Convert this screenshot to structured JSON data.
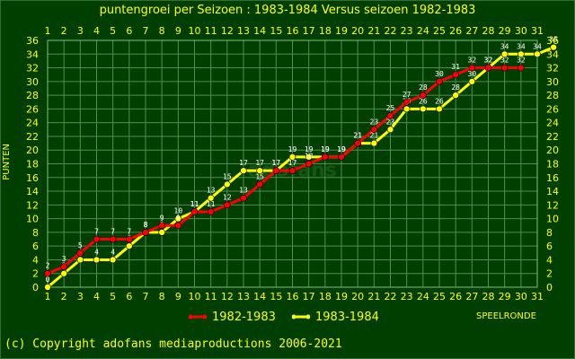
{
  "page": {
    "title": "puntengroei per Seizoen : 1983-1984 Versus seizoen 1982-1983",
    "ylabel": "PUNTEN",
    "xlabel": "SPEELRONDE",
    "copyright": "(c) Copyright adofans mediaproductions 2006-2021",
    "watermark": "adofans",
    "colors": {
      "background": "#003f00",
      "grid": "#4f8f4f",
      "text": "#ffff00",
      "series_1982": "#ff0000",
      "series_1983": "#ffff00"
    }
  },
  "chart_data": {
    "type": "line",
    "title": "puntengroei per Seizoen : 1983-1984 Versus seizoen 1982-1983",
    "xlabel": "SPEELRONDE",
    "ylabel": "PUNTEN",
    "xlim": [
      1,
      31
    ],
    "ylim": [
      0,
      36
    ],
    "x_ticks": [
      1,
      2,
      3,
      4,
      5,
      6,
      7,
      8,
      9,
      10,
      11,
      12,
      13,
      14,
      15,
      16,
      17,
      18,
      19,
      20,
      21,
      22,
      23,
      24,
      25,
      26,
      27,
      28,
      29,
      30,
      31
    ],
    "y_ticks": [
      0,
      2,
      4,
      6,
      8,
      10,
      12,
      14,
      16,
      18,
      20,
      22,
      24,
      26,
      28,
      30,
      32,
      34,
      36
    ],
    "grid": true,
    "legend_position": "bottom",
    "series": [
      {
        "name": "1982-1983",
        "color": "#ff0000",
        "x": [
          1,
          2,
          3,
          4,
          5,
          6,
          7,
          8,
          9,
          10,
          11,
          12,
          13,
          14,
          15,
          16,
          17,
          18,
          19,
          20,
          21,
          22,
          23,
          24,
          25,
          26,
          27,
          28,
          29,
          30
        ],
        "values": [
          2,
          3,
          5,
          7,
          7,
          7,
          8,
          9,
          9,
          11,
          11,
          12,
          13,
          15,
          17,
          17,
          18,
          19,
          19,
          21,
          23,
          25,
          27,
          28,
          30,
          31,
          32,
          32,
          32,
          32
        ]
      },
      {
        "name": "1983-1984",
        "color": "#ffff00",
        "x": [
          1,
          2,
          3,
          4,
          5,
          6,
          7,
          8,
          9,
          10,
          11,
          12,
          13,
          14,
          15,
          16,
          17,
          18,
          19,
          20,
          21,
          22,
          23,
          24,
          25,
          26,
          27,
          28,
          29,
          30,
          31,
          32
        ],
        "values": [
          0,
          2,
          4,
          4,
          4,
          6,
          8,
          8,
          10,
          11,
          13,
          15,
          17,
          17,
          17,
          19,
          19,
          19,
          19,
          21,
          21,
          23,
          26,
          26,
          26,
          28,
          30,
          32,
          34,
          34,
          34,
          35
        ]
      }
    ]
  }
}
